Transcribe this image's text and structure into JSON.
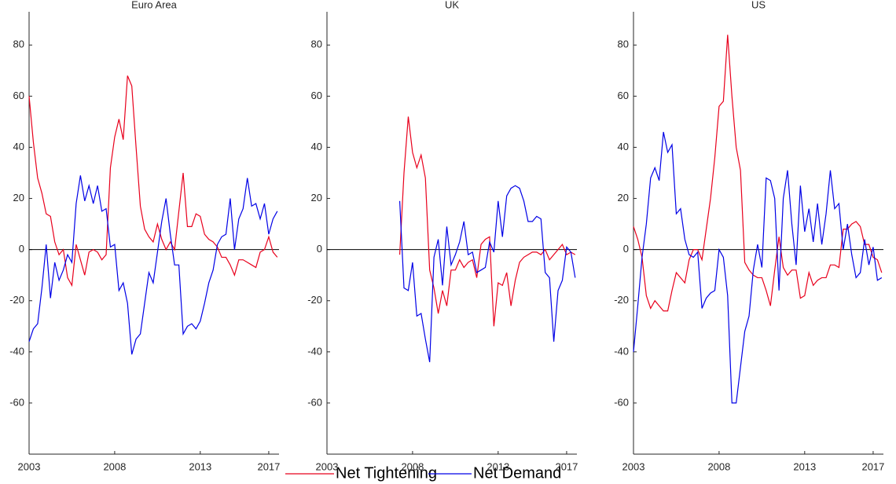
{
  "chart_data": [
    {
      "type": "line",
      "title": "Euro Area",
      "x": [
        2003,
        2003.25,
        2003.5,
        2003.75,
        2004,
        2004.25,
        2004.5,
        2004.75,
        2005,
        2005.25,
        2005.5,
        2005.75,
        2006,
        2006.25,
        2006.5,
        2006.75,
        2007,
        2007.25,
        2007.5,
        2007.75,
        2008,
        2008.25,
        2008.5,
        2008.75,
        2009,
        2009.25,
        2009.5,
        2009.75,
        2010,
        2010.25,
        2010.5,
        2010.75,
        2011,
        2011.25,
        2011.5,
        2011.75,
        2012,
        2012.25,
        2012.5,
        2012.75,
        2013,
        2013.25,
        2013.5,
        2013.75,
        2014,
        2014.25,
        2014.5,
        2014.75,
        2015,
        2015.25,
        2015.5,
        2015.75,
        2016,
        2016.25,
        2016.5,
        2016.75,
        2017,
        2017.25,
        2017.5
      ],
      "series": [
        {
          "name": "Net Tightening",
          "color": "#e8001c",
          "values": [
            60,
            42,
            28,
            22,
            14,
            13,
            3,
            -2,
            0,
            -11,
            -14,
            2,
            -4,
            -10,
            -1,
            0,
            -1,
            -4,
            -2,
            32,
            44,
            51,
            43,
            68,
            64,
            40,
            17,
            8,
            5,
            3,
            10,
            4,
            0,
            3,
            0,
            15,
            30,
            9,
            9,
            14,
            13,
            6,
            4,
            3,
            1,
            -3,
            -3,
            -6,
            -10,
            -4,
            -4,
            -5,
            -6,
            -7,
            -1,
            0,
            5,
            -1,
            -3
          ]
        },
        {
          "name": "Net Demand",
          "color": "#0000e6",
          "values": [
            -36,
            -31,
            -29,
            -15,
            2,
            -19,
            -5,
            -12,
            -8,
            -2,
            -5,
            18,
            29,
            19,
            25,
            18,
            25,
            15,
            16,
            1,
            2,
            -16,
            -13,
            -21,
            -41,
            -35,
            -33,
            -21,
            -9,
            -13,
            -1,
            11,
            20,
            6,
            -6,
            -6,
            -33,
            -30,
            -29,
            -31,
            -28,
            -21,
            -13,
            -8,
            2,
            5,
            6,
            20,
            0,
            12,
            16,
            28,
            17,
            18,
            12,
            18,
            6,
            12,
            15
          ]
        }
      ],
      "xlim": [
        2003,
        2017.6
      ],
      "xticks": [
        2003,
        2008,
        2013,
        2017
      ],
      "ylim": [
        -80,
        93
      ],
      "yticks": [
        -60,
        -40,
        -20,
        0,
        20,
        40,
        60,
        80
      ]
    },
    {
      "type": "line",
      "title": "UK",
      "x": [
        2007.25,
        2007.5,
        2007.75,
        2008,
        2008.25,
        2008.5,
        2008.75,
        2009,
        2009.25,
        2009.5,
        2009.75,
        2010,
        2010.25,
        2010.5,
        2010.75,
        2011,
        2011.25,
        2011.5,
        2011.75,
        2012,
        2012.25,
        2012.5,
        2012.75,
        2013,
        2013.25,
        2013.5,
        2013.75,
        2014,
        2014.25,
        2014.5,
        2014.75,
        2015,
        2015.25,
        2015.5,
        2015.75,
        2016,
        2016.25,
        2016.5,
        2016.75,
        2017,
        2017.25,
        2017.5
      ],
      "series": [
        {
          "color": "#e8001c",
          "values": [
            -2,
            30,
            52,
            38,
            32,
            37,
            28,
            -8,
            -15,
            -25,
            -16,
            -22,
            -8,
            -8,
            -4,
            -7,
            -5,
            -4,
            -11,
            2,
            4,
            5,
            -30,
            -13,
            -14,
            -9,
            -22,
            -12,
            -5,
            -3,
            -2,
            -1,
            -1,
            -2,
            0,
            -4,
            -2,
            0,
            2,
            -2,
            -1,
            -2
          ]
        },
        {
          "color": "#0000e6",
          "values": [
            19,
            -15,
            -16,
            -5,
            -26,
            -25,
            -35,
            -44,
            -3,
            4,
            -14,
            9,
            -6,
            -2,
            3,
            11,
            -2,
            -1,
            -9,
            -8,
            -7,
            3,
            -1,
            19,
            5,
            21,
            24,
            25,
            24,
            19,
            11,
            11,
            13,
            12,
            -9,
            -11,
            -36,
            -16,
            -12,
            1,
            -1,
            -11
          ]
        }
      ],
      "xlim": [
        2003,
        2017.6
      ],
      "xticks": [
        2003,
        2008,
        2013,
        2017
      ],
      "ylim": [
        -80,
        93
      ],
      "yticks": [
        -60,
        -40,
        -20,
        0,
        20,
        40,
        60,
        80
      ]
    },
    {
      "type": "line",
      "title": "US",
      "x": [
        2003,
        2003.25,
        2003.5,
        2003.75,
        2004,
        2004.25,
        2004.5,
        2004.75,
        2005,
        2005.25,
        2005.5,
        2005.75,
        2006,
        2006.25,
        2006.5,
        2006.75,
        2007,
        2007.25,
        2007.5,
        2007.75,
        2008,
        2008.25,
        2008.5,
        2008.75,
        2009,
        2009.25,
        2009.5,
        2009.75,
        2010,
        2010.25,
        2010.5,
        2010.75,
        2011,
        2011.25,
        2011.5,
        2011.75,
        2012,
        2012.25,
        2012.5,
        2012.75,
        2013,
        2013.25,
        2013.5,
        2013.75,
        2014,
        2014.25,
        2014.5,
        2014.75,
        2015,
        2015.25,
        2015.5,
        2015.75,
        2016,
        2016.25,
        2016.5,
        2016.75,
        2017,
        2017.25,
        2017.5
      ],
      "series": [
        {
          "color": "#e8001c",
          "values": [
            9,
            4,
            -3,
            -18,
            -23,
            -20,
            -22,
            -24,
            -24,
            -16,
            -9,
            -11,
            -13,
            -4,
            0,
            0,
            -4,
            8,
            20,
            36,
            56,
            58,
            84,
            60,
            40,
            31,
            -5,
            -8,
            -10,
            -11,
            -11,
            -16,
            -22,
            -8,
            5,
            -7,
            -10,
            -8,
            -8,
            -19,
            -18,
            -9,
            -14,
            -12,
            -11,
            -11,
            -6,
            -6,
            -7,
            8,
            8,
            10,
            11,
            9,
            2,
            2,
            -3,
            -4,
            -9
          ]
        },
        {
          "color": "#0000e6",
          "values": [
            -40,
            -22,
            -3,
            10,
            28,
            32,
            27,
            46,
            38,
            41,
            14,
            16,
            4,
            -2,
            -3,
            -1,
            -23,
            -19,
            -17,
            -16,
            0,
            -3,
            -18,
            -60,
            -60,
            -46,
            -32,
            -26,
            -8,
            2,
            -7,
            28,
            27,
            20,
            -16,
            20,
            31,
            10,
            -6,
            25,
            7,
            16,
            3,
            18,
            2,
            14,
            31,
            16,
            18,
            0,
            10,
            -2,
            -11,
            -9,
            4,
            -6,
            1,
            -12,
            -11
          ]
        }
      ],
      "xlim": [
        2003,
        2017.6
      ],
      "xticks": [
        2003,
        2008,
        2013,
        2017
      ],
      "ylim": [
        -80,
        93
      ],
      "yticks": [
        -60,
        -40,
        -20,
        0,
        20,
        40,
        60,
        80
      ]
    }
  ]
}
